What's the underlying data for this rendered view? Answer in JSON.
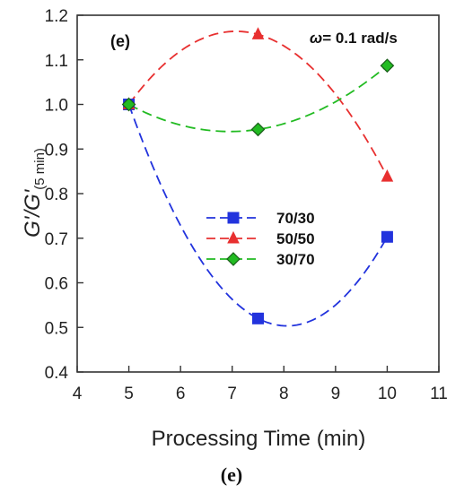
{
  "chart_data": {
    "type": "line",
    "xlabel": "Processing Time (min)",
    "ylabel_main": "G'/G'",
    "ylabel_sub": "(5 min)",
    "xlim": [
      4,
      11
    ],
    "ylim": [
      0.4,
      1.2
    ],
    "xticks": [
      4,
      5,
      6,
      7,
      8,
      9,
      10,
      11
    ],
    "yticks": [
      0.4,
      0.5,
      0.6,
      0.7,
      0.8,
      0.9,
      1.0,
      1.1,
      1.2
    ],
    "ytick_labels": [
      "0.4",
      "0.5",
      "0.6",
      "0.7",
      "0.8",
      "0.9",
      "1.0",
      "1.1",
      "1.2"
    ],
    "panel_label": "(e)",
    "annotation_symbol": "ω",
    "annotation_text": "= 0.1 rad/s",
    "caption": "(e)",
    "legend_position": "center",
    "grid": false,
    "series": [
      {
        "name": "70/30",
        "color": "#2233dd",
        "marker": "square",
        "x": [
          5,
          7.5,
          10
        ],
        "y": [
          1.0,
          0.52,
          0.703
        ]
      },
      {
        "name": "50/50",
        "color": "#e83030",
        "marker": "triangle",
        "x": [
          5,
          7.5,
          10
        ],
        "y": [
          1.0,
          1.157,
          0.838
        ]
      },
      {
        "name": "30/70",
        "color": "#22bb22",
        "marker": "diamond",
        "x": [
          5,
          7.5,
          10
        ],
        "y": [
          1.0,
          0.944,
          1.087
        ]
      }
    ]
  }
}
